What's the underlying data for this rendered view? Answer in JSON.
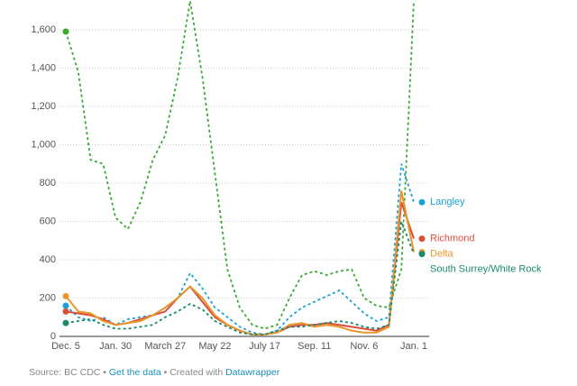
{
  "chart_data": {
    "type": "line",
    "categories": [
      "Dec. 5",
      null,
      null,
      null,
      "Jan. 30",
      null,
      null,
      null,
      "March 27",
      null,
      null,
      null,
      "May 22",
      null,
      null,
      null,
      "July 17",
      null,
      null,
      null,
      "Sep. 11",
      null,
      null,
      null,
      "Nov. 6",
      null,
      null,
      null,
      "Jan. 1"
    ],
    "series": [
      {
        "color": "#3aaa35",
        "dash": true,
        "values": [
          1590,
          1380,
          920,
          900,
          620,
          560,
          700,
          920,
          1050,
          1350,
          1750,
          1350,
          850,
          350,
          150,
          60,
          40,
          60,
          200,
          320,
          340,
          320,
          340,
          350,
          200,
          160,
          150,
          350,
          1750
        ]
      },
      {
        "name": "Langley",
        "color": "#1ba0d8",
        "dash": true,
        "values": [
          160,
          100,
          80,
          100,
          60,
          90,
          100,
          110,
          150,
          200,
          330,
          250,
          150,
          100,
          50,
          20,
          10,
          30,
          100,
          150,
          180,
          210,
          240,
          180,
          120,
          80,
          100,
          900,
          700
        ]
      },
      {
        "name": "Richmond",
        "color": "#d94f3e",
        "dash": false,
        "values": [
          130,
          120,
          110,
          90,
          60,
          70,
          90,
          110,
          130,
          200,
          260,
          180,
          100,
          60,
          30,
          10,
          10,
          20,
          50,
          60,
          60,
          70,
          60,
          50,
          40,
          30,
          60,
          700,
          510
        ]
      },
      {
        "name": "Delta",
        "color": "#e8972a",
        "dash": false,
        "values": [
          210,
          130,
          120,
          80,
          60,
          70,
          80,
          110,
          150,
          200,
          260,
          200,
          110,
          60,
          30,
          10,
          10,
          20,
          60,
          70,
          50,
          60,
          50,
          30,
          20,
          20,
          50,
          760,
          440
        ]
      },
      {
        "name": "South Surrey/White Rock",
        "color": "#1a8a6e",
        "dash": true,
        "values": [
          70,
          80,
          90,
          60,
          40,
          40,
          50,
          60,
          100,
          130,
          170,
          140,
          80,
          50,
          20,
          10,
          10,
          30,
          50,
          50,
          60,
          70,
          80,
          70,
          50,
          40,
          60,
          600,
          430
        ]
      }
    ],
    "ylim": [
      0,
      1750
    ],
    "yticks": [
      0,
      200,
      400,
      600,
      800,
      {
        "value": 1000,
        "label": "1,000"
      },
      {
        "value": 1200,
        "label": "1,200"
      },
      {
        "value": 1400,
        "label": "1,400"
      },
      {
        "value": 1600,
        "label": "1,600"
      }
    ],
    "grid": true,
    "footer": {
      "source": "Source: BC CDC",
      "separator": "•",
      "link": "Get the data",
      "credit": "Created with",
      "brand": "Datawrapper"
    }
  }
}
